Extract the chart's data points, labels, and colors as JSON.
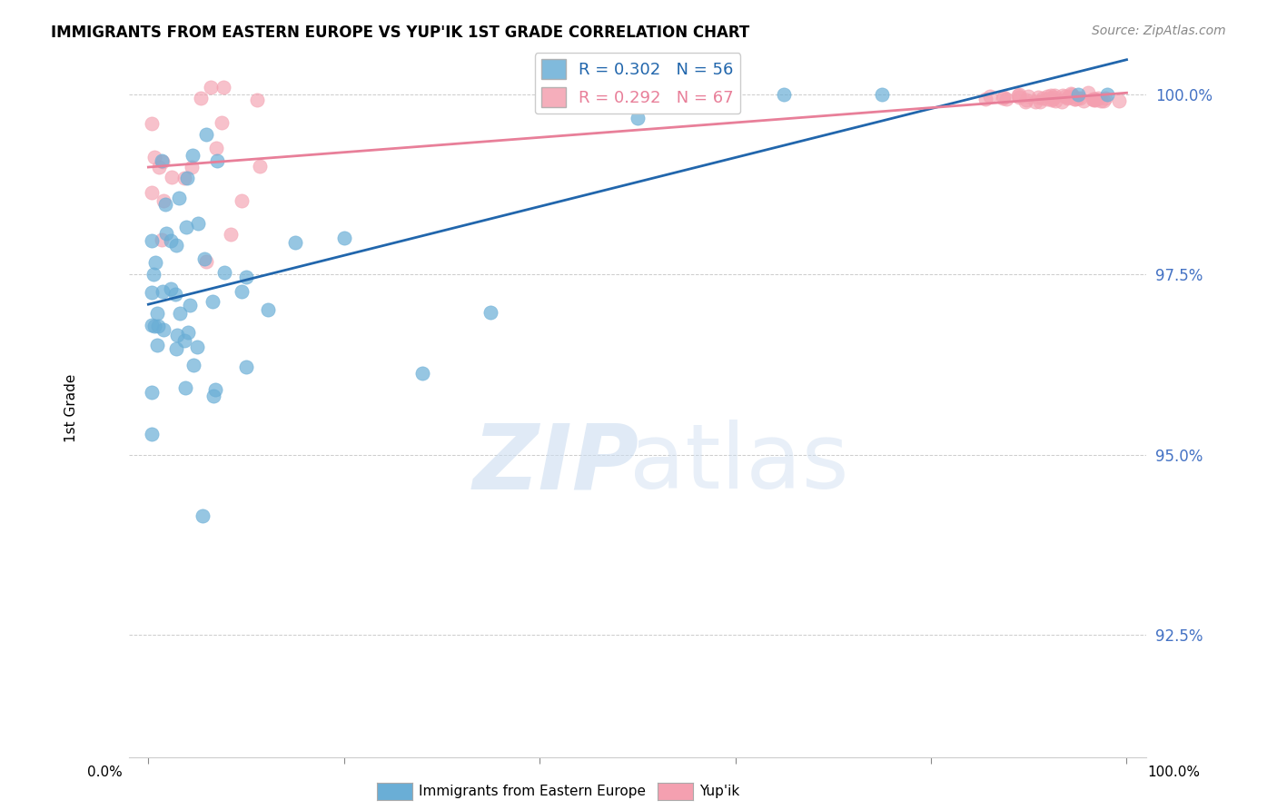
{
  "title": "IMMIGRANTS FROM EASTERN EUROPE VS YUP'IK 1ST GRADE CORRELATION CHART",
  "source": "Source: ZipAtlas.com",
  "ylabel": "1st Grade",
  "yaxis_labels": [
    "100.0%",
    "97.5%",
    "95.0%",
    "92.5%"
  ],
  "ymin": 0.908,
  "ymax": 1.005,
  "xmin": -0.02,
  "xmax": 1.02,
  "blue_R": 0.302,
  "blue_N": 56,
  "pink_R": 0.292,
  "pink_N": 67,
  "blue_label": "Immigrants from Eastern Europe",
  "pink_label": "Yup'ik",
  "blue_color": "#6aaed6",
  "pink_color": "#f4a0b0",
  "blue_line_color": "#2166ac",
  "pink_line_color": "#e87f99",
  "yticks": [
    1.0,
    0.975,
    0.95,
    0.925
  ],
  "watermark_zip": "ZIP",
  "watermark_atlas": "atlas",
  "watermark_color": "#ccddf0"
}
